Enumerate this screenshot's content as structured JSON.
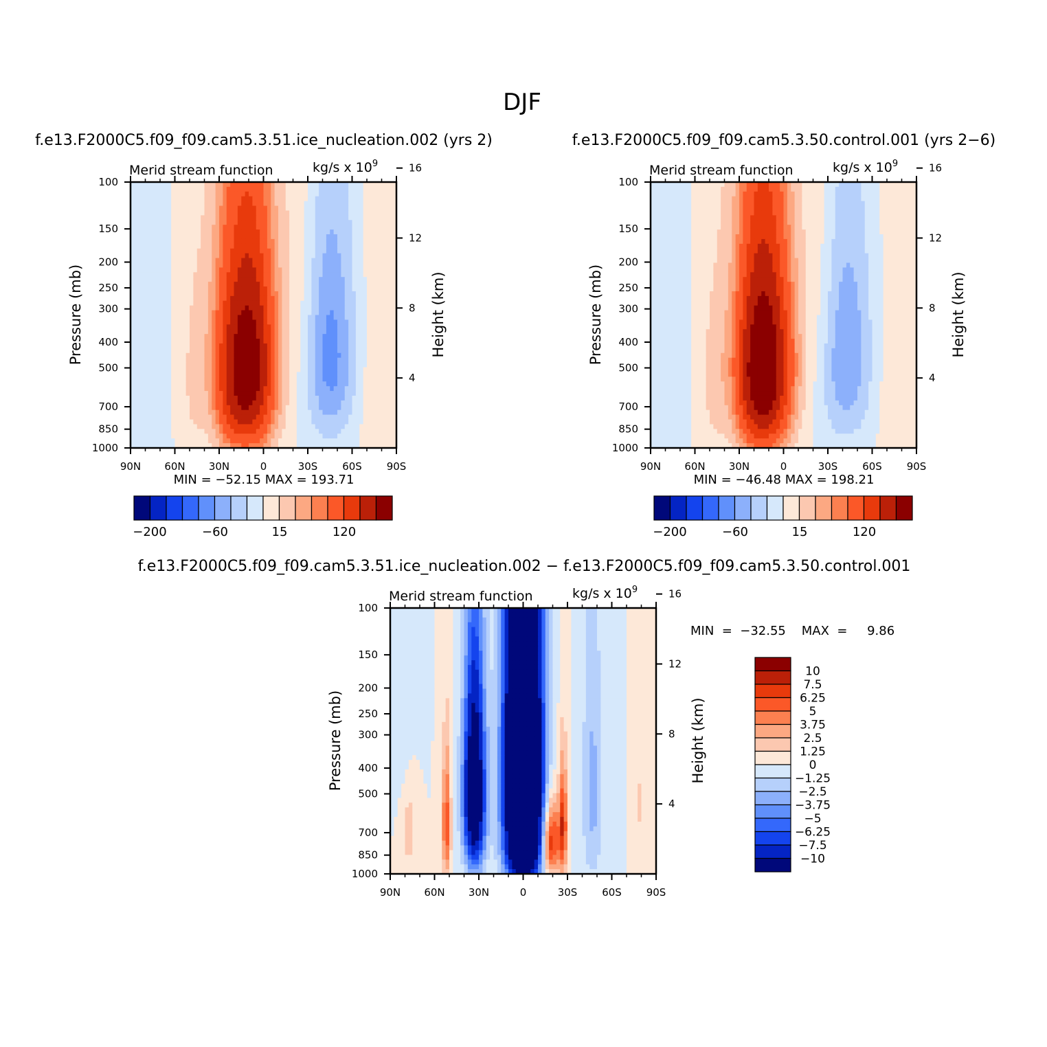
{
  "figure": {
    "title": "DJF"
  },
  "colors": {
    "positive": [
      "#fde8d8",
      "#fcc8b0",
      "#fca882",
      "#fc8050",
      "#fb5828",
      "#e83a0c",
      "#bb2008",
      "#8b0000"
    ],
    "negative": [
      "#d6e8fb",
      "#b6d0fb",
      "#8cb0fb",
      "#6090fb",
      "#3468fb",
      "#1444ee",
      "#0424c4",
      "#00087a"
    ]
  },
  "chart_data": [
    {
      "type": "heatmap",
      "id": "p1",
      "case_title": "f.e13.F2000C5.f09_f09.cam5.3.51.ice_nucleation.002  (yrs 2)",
      "variable": "Merid stream function",
      "units": "kg/s  x  10",
      "units_exp": "9",
      "ylabel": "Pressure  (mb)",
      "y2label": "Height  (km)",
      "x_ticks": [
        "90N",
        "60N",
        "30N",
        "0",
        "30S",
        "60S",
        "90S"
      ],
      "y_ticks": [
        "100",
        "150",
        "200",
        "250",
        "300",
        "400",
        "500",
        "700",
        "850",
        "1000"
      ],
      "y2_ticks": [
        "16",
        "12",
        "8",
        "4"
      ],
      "min_max": "MIN  =  −52.15     MAX  =  193.71",
      "colorbar": {
        "orientation": "horizontal",
        "labels": [
          "−200",
          "−60",
          "15",
          "120"
        ]
      },
      "cells": [
        {
          "lat": -45,
          "p": 450,
          "sx": 12,
          "sy": 300,
          "amp": -52
        },
        {
          "lat": 10,
          "p": 500,
          "sx": 12,
          "sy": 310,
          "amp": 194
        },
        {
          "lat": 25,
          "p": 550,
          "sx": 8,
          "sy": 300,
          "amp": 36
        },
        {
          "lat": 47,
          "p": 560,
          "sx": 6,
          "sy": 300,
          "amp": 17
        },
        {
          "lat": 80,
          "p": 600,
          "sx": 8,
          "sy": 600,
          "amp": -10
        },
        {
          "lat": -75,
          "p": 600,
          "sx": 8,
          "sy": 500,
          "amp": 10
        },
        {
          "lat": 35,
          "p": 300,
          "sx": 10,
          "sy": 400,
          "amp": 8
        },
        {
          "lat": -25,
          "p": 200,
          "sx": 10,
          "sy": 300,
          "amp": 12
        }
      ]
    },
    {
      "type": "heatmap",
      "id": "p2",
      "case_title": "f.e13.F2000C5.f09_f09.cam5.3.50.control.001  (yrs 2−6)",
      "variable": "Merid stream function",
      "units": "kg/s  x  10",
      "units_exp": "9",
      "ylabel": "Pressure  (mb)",
      "y2label": "Height  (km)",
      "x_ticks": [
        "90N",
        "60N",
        "30N",
        "0",
        "30S",
        "60S",
        "90S"
      ],
      "y_ticks": [
        "100",
        "150",
        "200",
        "250",
        "300",
        "400",
        "500",
        "700",
        "850",
        "1000"
      ],
      "y2_ticks": [
        "16",
        "12",
        "8",
        "4"
      ],
      "min_max": "MIN  =  −46.48     MAX  =  198.21",
      "colorbar": {
        "orientation": "horizontal",
        "labels": [
          "−200",
          "−60",
          "15",
          "120"
        ]
      },
      "cells": [
        {
          "lat": -42,
          "p": 450,
          "sx": 12,
          "sy": 300,
          "amp": -46
        },
        {
          "lat": 12,
          "p": 500,
          "sx": 12,
          "sy": 310,
          "amp": 198
        },
        {
          "lat": 22,
          "p": 550,
          "sx": 8,
          "sy": 300,
          "amp": 36
        },
        {
          "lat": 47,
          "p": 560,
          "sx": 7,
          "sy": 300,
          "amp": 18
        },
        {
          "lat": 80,
          "p": 600,
          "sx": 8,
          "sy": 600,
          "amp": -10
        },
        {
          "lat": -75,
          "p": 600,
          "sx": 8,
          "sy": 500,
          "amp": 10
        },
        {
          "lat": 35,
          "p": 300,
          "sx": 10,
          "sy": 400,
          "amp": 8
        },
        {
          "lat": -25,
          "p": 200,
          "sx": 10,
          "sy": 300,
          "amp": 12
        }
      ]
    },
    {
      "type": "heatmap",
      "id": "p3",
      "case_title": "f.e13.F2000C5.f09_f09.cam5.3.51.ice_nucleation.002  −  f.e13.F2000C5.f09_f09.cam5.3.50.control.001",
      "variable": "Merid stream function",
      "units": "kg/s  x  10",
      "units_exp": "9",
      "ylabel": "Pressure  (mb)",
      "y2label": "Height  (km)",
      "x_ticks": [
        "90N",
        "60N",
        "30N",
        "0",
        "30S",
        "60S",
        "90S"
      ],
      "y_ticks": [
        "100",
        "150",
        "200",
        "250",
        "300",
        "400",
        "500",
        "700",
        "850",
        "1000"
      ],
      "y2_ticks": [
        "16",
        "12",
        "8",
        "4"
      ],
      "min_max": "MIN  =  −32.55    MAX  =     9.86",
      "colorbar": {
        "orientation": "vertical",
        "labels": [
          "10",
          "7.5",
          "6.25",
          "5",
          "3.75",
          "2.5",
          "1.25",
          "0",
          "−1.25",
          "−2.5",
          "−3.75",
          "−5",
          "−6.25",
          "−7.5",
          "−10"
        ]
      },
      "cells": [
        {
          "lat": 0,
          "p": 450,
          "sx": 8,
          "sy": 400,
          "amp": -32
        },
        {
          "lat": 33,
          "p": 500,
          "sx": 5,
          "sy": 280,
          "amp": -16
        },
        {
          "lat": -19,
          "p": 750,
          "sx": 4,
          "sy": 170,
          "amp": 8
        },
        {
          "lat": 52,
          "p": 650,
          "sx": 2,
          "sy": 250,
          "amp": 6
        },
        {
          "lat": -27,
          "p": 650,
          "sx": 2,
          "sy": 220,
          "amp": 7
        },
        {
          "lat": -47,
          "p": 500,
          "sx": 5,
          "sy": 350,
          "amp": -3
        },
        {
          "lat": 77,
          "p": 700,
          "sx": 3,
          "sy": 150,
          "amp": 2.2
        },
        {
          "lat": -78,
          "p": 550,
          "sx": 2,
          "sy": 150,
          "amp": 1.6
        },
        {
          "lat": 83,
          "p": 200,
          "sx": 5,
          "sy": 150,
          "amp": -1
        }
      ]
    }
  ]
}
